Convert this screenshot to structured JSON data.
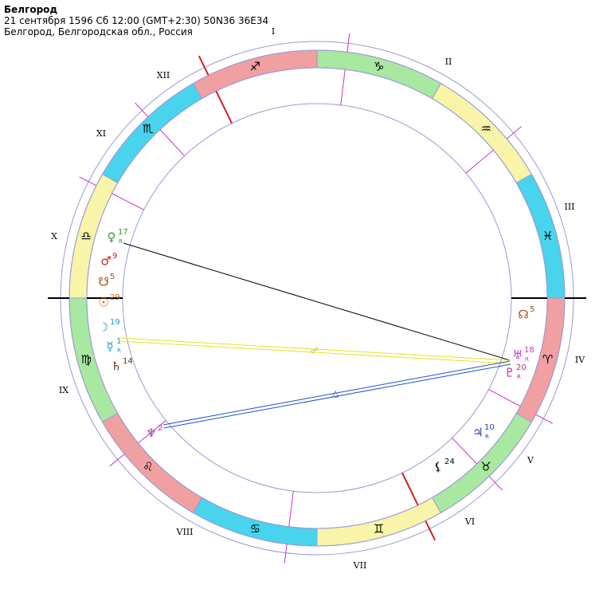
{
  "header": {
    "title": "Белгород",
    "date_line": "21 сентября 1596  Сб  12:00 (GMT+2:30) 50N36  36E34",
    "location_line": "Белгород, Белгородская обл., Россия"
  },
  "houses": [
    "I",
    "II",
    "III",
    "IV",
    "V",
    "VI",
    "VII",
    "VIII",
    "IX",
    "X",
    "XI",
    "XII"
  ],
  "signs": [
    "♑",
    "♒",
    "♓",
    "♈",
    "♉",
    "♊",
    "♋",
    "♌",
    "♍",
    "♎",
    "♏",
    "♐"
  ],
  "planets": [
    {
      "glyph": "♀",
      "degree": "17",
      "retro": "R",
      "color": "#2e9a2e"
    },
    {
      "glyph": "♂",
      "degree": "9",
      "color": "#d02020"
    },
    {
      "glyph": "☋",
      "degree": "5",
      "color": "#a05018"
    },
    {
      "glyph": "☉",
      "degree": "29",
      "color": "#e06010"
    },
    {
      "glyph": "☽",
      "degree": "19",
      "color": "#10a0d0"
    },
    {
      "glyph": "☿",
      "degree": "1",
      "retro": "R",
      "color": "#10a0d0"
    },
    {
      "glyph": "♄",
      "degree": "14",
      "color": "#603010"
    },
    {
      "glyph": "♆",
      "degree": "2",
      "color": "#a040c0"
    },
    {
      "glyph": "☊",
      "degree": "5",
      "color": "#a05018"
    },
    {
      "glyph": "♅",
      "degree": "18",
      "retro": "R",
      "color": "#d030d0"
    },
    {
      "glyph": "♇",
      "degree": "20",
      "retro": "R",
      "color": "#c02080"
    },
    {
      "glyph": "♃",
      "degree": "10",
      "retro": "R",
      "color": "#2040c0"
    },
    {
      "glyph": "⚸",
      "degree": "24",
      "color": "#000000"
    }
  ],
  "aspects": [
    "☍",
    "△"
  ]
}
